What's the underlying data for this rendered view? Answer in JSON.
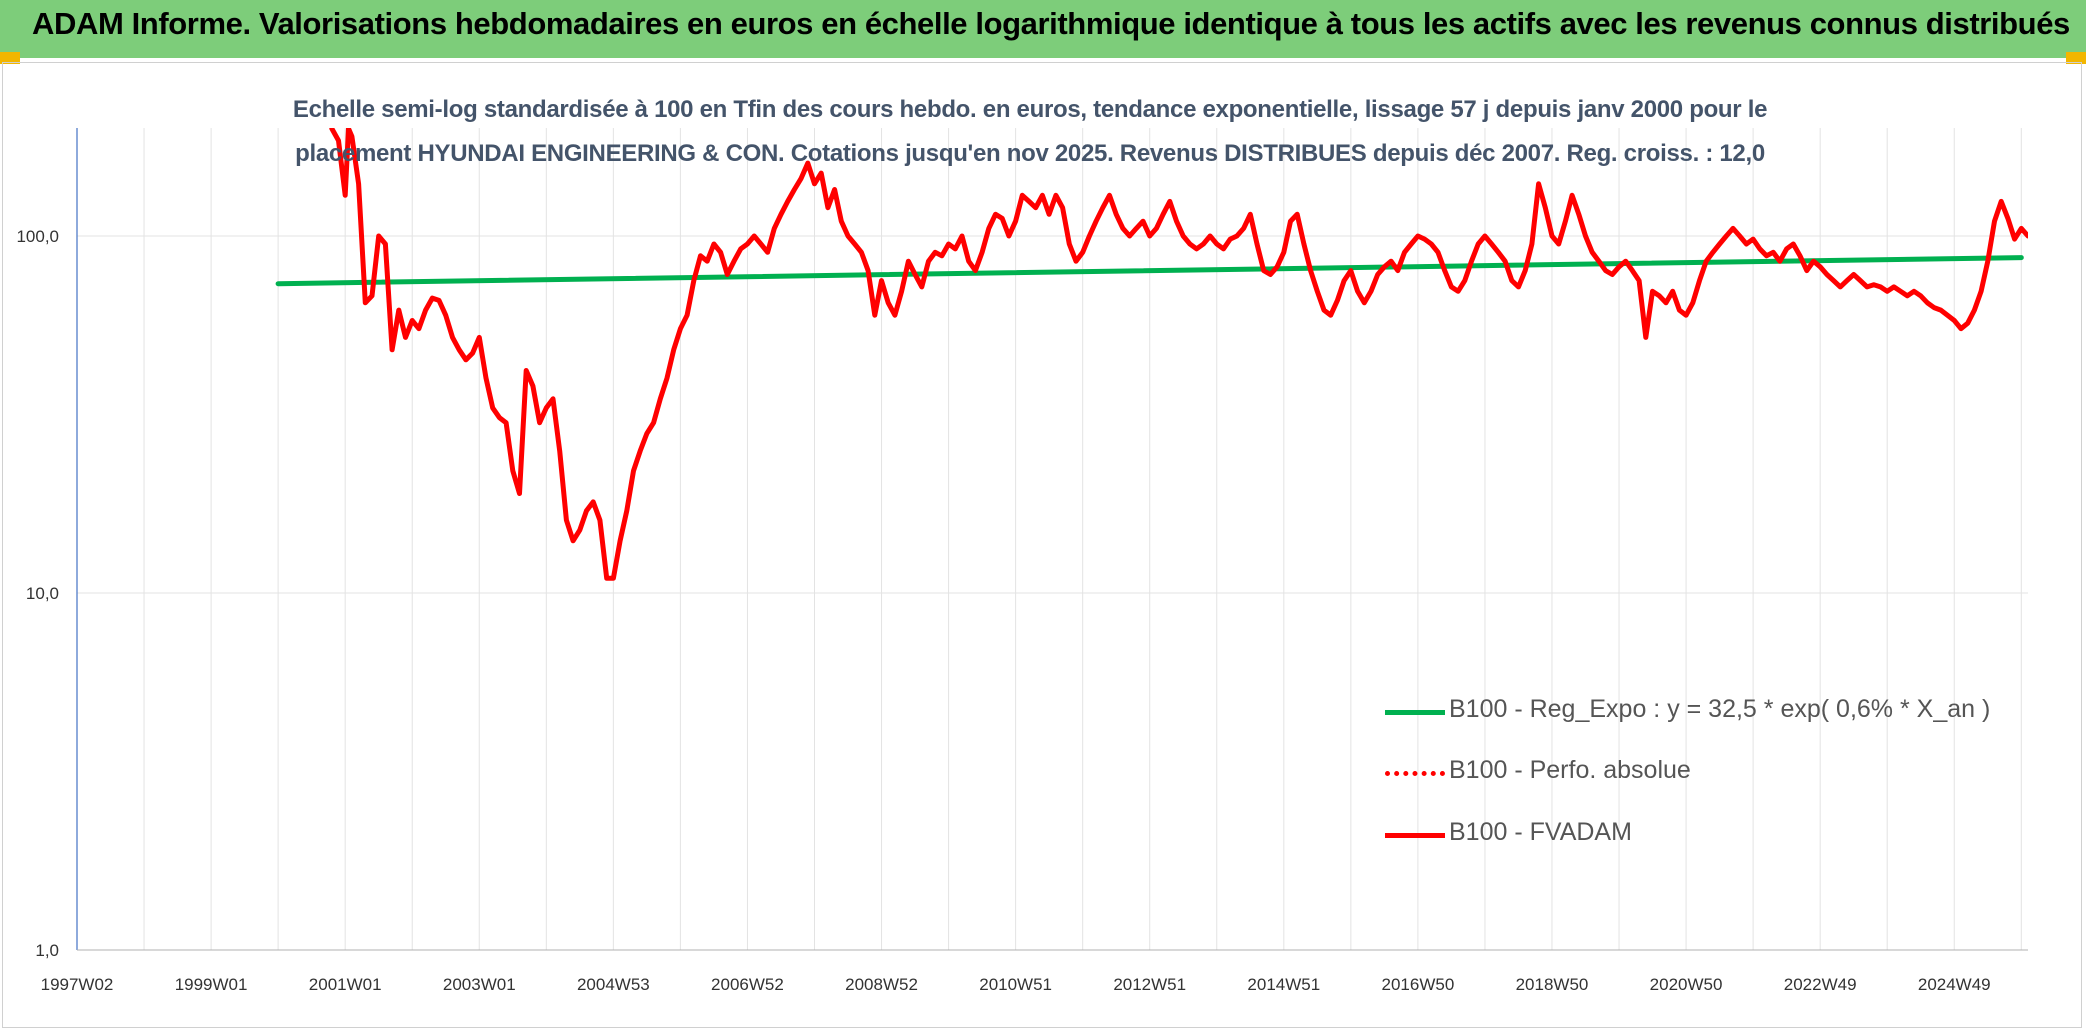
{
  "header": {
    "title": "ADAM Informe. Valorisations hebdomadaires en euros en échelle logarithmique identique à tous les actifs avec les revenus connus distribués"
  },
  "colors": {
    "header_bg": "#7dcd7a",
    "regression": "#00b050",
    "fvadam": "#ff0000",
    "title": "#44546a"
  },
  "chart_data": {
    "type": "line",
    "title": "Echelle semi-log standardisée à 100 en Tfin des cours hebdo. en euros, tendance exponentielle, lissage 57 j depuis janv 2000 pour le placement HYUNDAI ENGINEERING & CON. Cotations jusqu'en nov 2025. Revenus DISTRIBUES depuis déc 2007. Reg. croiss. : 12,0",
    "y_scale": "log",
    "ylim": [
      1,
      200
    ],
    "xlim": [
      1997.0,
      2026.1
    ],
    "y_ticks": [
      {
        "value": 1,
        "label": "1,0"
      },
      {
        "value": 10,
        "label": "10,0"
      },
      {
        "value": 100,
        "label": "100,0"
      }
    ],
    "x_ticks": [
      {
        "value": 1997.0,
        "label": "1997W02"
      },
      {
        "value": 1999.0,
        "label": "1999W01"
      },
      {
        "value": 2001.0,
        "label": "2001W01"
      },
      {
        "value": 2003.0,
        "label": "2003W01"
      },
      {
        "value": 2005.0,
        "label": "2004W53"
      },
      {
        "value": 2007.0,
        "label": "2006W52"
      },
      {
        "value": 2009.0,
        "label": "2008W52"
      },
      {
        "value": 2011.0,
        "label": "2010W51"
      },
      {
        "value": 2013.0,
        "label": "2012W51"
      },
      {
        "value": 2015.0,
        "label": "2014W51"
      },
      {
        "value": 2017.0,
        "label": "2016W50"
      },
      {
        "value": 2019.0,
        "label": "2018W50"
      },
      {
        "value": 2021.0,
        "label": "2020W50"
      },
      {
        "value": 2023.0,
        "label": "2022W49"
      },
      {
        "value": 2025.0,
        "label": "2024W49"
      }
    ],
    "grid": true,
    "legend_position": "bottom-right",
    "series": [
      {
        "name": "B100 - Reg_Expo : y = 32,5 * exp( 0,6% *  X_an )",
        "style": "solid",
        "color": "#00b050",
        "points": [
          [
            2000.0,
            73.5
          ],
          [
            2026.0,
            87.0
          ]
        ]
      },
      {
        "name": "B100 - Perfo. absolue",
        "style": "dotted",
        "color": "#ff0000",
        "points": []
      },
      {
        "name": "B100 - FVADAM",
        "style": "solid",
        "color": "#ff0000",
        "points": [
          [
            2000.8,
            200
          ],
          [
            2000.9,
            185
          ],
          [
            2001.0,
            130
          ],
          [
            2001.05,
            200
          ],
          [
            2001.1,
            190
          ],
          [
            2001.2,
            140
          ],
          [
            2001.3,
            65
          ],
          [
            2001.4,
            68
          ],
          [
            2001.5,
            100
          ],
          [
            2001.6,
            95
          ],
          [
            2001.7,
            48
          ],
          [
            2001.8,
            62
          ],
          [
            2001.9,
            52
          ],
          [
            2002.0,
            58
          ],
          [
            2002.1,
            55
          ],
          [
            2002.2,
            62
          ],
          [
            2002.3,
            67
          ],
          [
            2002.4,
            66
          ],
          [
            2002.5,
            60
          ],
          [
            2002.6,
            52
          ],
          [
            2002.7,
            48
          ],
          [
            2002.8,
            45
          ],
          [
            2002.9,
            47
          ],
          [
            2003.0,
            52
          ],
          [
            2003.1,
            40
          ],
          [
            2003.2,
            33
          ],
          [
            2003.3,
            31
          ],
          [
            2003.4,
            30
          ],
          [
            2003.5,
            22
          ],
          [
            2003.6,
            19
          ],
          [
            2003.7,
            42
          ],
          [
            2003.8,
            38
          ],
          [
            2003.9,
            30
          ],
          [
            2004.0,
            33
          ],
          [
            2004.1,
            35
          ],
          [
            2004.2,
            25
          ],
          [
            2004.3,
            16
          ],
          [
            2004.4,
            14
          ],
          [
            2004.5,
            15
          ],
          [
            2004.6,
            17
          ],
          [
            2004.7,
            18
          ],
          [
            2004.8,
            16
          ],
          [
            2004.9,
            11
          ],
          [
            2005.0,
            11
          ],
          [
            2005.1,
            14
          ],
          [
            2005.2,
            17
          ],
          [
            2005.3,
            22
          ],
          [
            2005.4,
            25
          ],
          [
            2005.5,
            28
          ],
          [
            2005.6,
            30
          ],
          [
            2005.7,
            35
          ],
          [
            2005.8,
            40
          ],
          [
            2005.9,
            48
          ],
          [
            2006.0,
            55
          ],
          [
            2006.1,
            60
          ],
          [
            2006.2,
            75
          ],
          [
            2006.3,
            88
          ],
          [
            2006.4,
            85
          ],
          [
            2006.5,
            95
          ],
          [
            2006.6,
            90
          ],
          [
            2006.7,
            78
          ],
          [
            2006.8,
            85
          ],
          [
            2006.9,
            92
          ],
          [
            2007.0,
            95
          ],
          [
            2007.1,
            100
          ],
          [
            2007.2,
            95
          ],
          [
            2007.3,
            90
          ],
          [
            2007.4,
            105
          ],
          [
            2007.5,
            115
          ],
          [
            2007.6,
            125
          ],
          [
            2007.7,
            135
          ],
          [
            2007.8,
            145
          ],
          [
            2007.9,
            160
          ],
          [
            2008.0,
            140
          ],
          [
            2008.1,
            150
          ],
          [
            2008.2,
            120
          ],
          [
            2008.3,
            135
          ],
          [
            2008.4,
            110
          ],
          [
            2008.5,
            100
          ],
          [
            2008.6,
            95
          ],
          [
            2008.7,
            90
          ],
          [
            2008.8,
            80
          ],
          [
            2008.9,
            60
          ],
          [
            2009.0,
            75
          ],
          [
            2009.1,
            65
          ],
          [
            2009.2,
            60
          ],
          [
            2009.3,
            70
          ],
          [
            2009.4,
            85
          ],
          [
            2009.5,
            78
          ],
          [
            2009.6,
            72
          ],
          [
            2009.7,
            85
          ],
          [
            2009.8,
            90
          ],
          [
            2009.9,
            88
          ],
          [
            2010.0,
            95
          ],
          [
            2010.1,
            92
          ],
          [
            2010.2,
            100
          ],
          [
            2010.3,
            85
          ],
          [
            2010.4,
            80
          ],
          [
            2010.5,
            90
          ],
          [
            2010.6,
            105
          ],
          [
            2010.7,
            115
          ],
          [
            2010.8,
            112
          ],
          [
            2010.9,
            100
          ],
          [
            2011.0,
            110
          ],
          [
            2011.1,
            130
          ],
          [
            2011.2,
            125
          ],
          [
            2011.3,
            120
          ],
          [
            2011.4,
            130
          ],
          [
            2011.5,
            115
          ],
          [
            2011.6,
            130
          ],
          [
            2011.7,
            120
          ],
          [
            2011.8,
            95
          ],
          [
            2011.9,
            85
          ],
          [
            2012.0,
            90
          ],
          [
            2012.1,
            100
          ],
          [
            2012.2,
            110
          ],
          [
            2012.3,
            120
          ],
          [
            2012.4,
            130
          ],
          [
            2012.5,
            115
          ],
          [
            2012.6,
            105
          ],
          [
            2012.7,
            100
          ],
          [
            2012.8,
            105
          ],
          [
            2012.9,
            110
          ],
          [
            2013.0,
            100
          ],
          [
            2013.1,
            105
          ],
          [
            2013.2,
            115
          ],
          [
            2013.3,
            125
          ],
          [
            2013.4,
            110
          ],
          [
            2013.5,
            100
          ],
          [
            2013.6,
            95
          ],
          [
            2013.7,
            92
          ],
          [
            2013.8,
            95
          ],
          [
            2013.9,
            100
          ],
          [
            2014.0,
            95
          ],
          [
            2014.1,
            92
          ],
          [
            2014.2,
            98
          ],
          [
            2014.3,
            100
          ],
          [
            2014.4,
            105
          ],
          [
            2014.5,
            115
          ],
          [
            2014.6,
            95
          ],
          [
            2014.7,
            80
          ],
          [
            2014.8,
            78
          ],
          [
            2014.9,
            82
          ],
          [
            2015.0,
            90
          ],
          [
            2015.1,
            110
          ],
          [
            2015.2,
            115
          ],
          [
            2015.3,
            95
          ],
          [
            2015.4,
            80
          ],
          [
            2015.5,
            70
          ],
          [
            2015.6,
            62
          ],
          [
            2015.7,
            60
          ],
          [
            2015.8,
            66
          ],
          [
            2015.9,
            75
          ],
          [
            2016.0,
            80
          ],
          [
            2016.1,
            70
          ],
          [
            2016.2,
            65
          ],
          [
            2016.3,
            70
          ],
          [
            2016.4,
            78
          ],
          [
            2016.5,
            82
          ],
          [
            2016.6,
            85
          ],
          [
            2016.7,
            80
          ],
          [
            2016.8,
            90
          ],
          [
            2016.9,
            95
          ],
          [
            2017.0,
            100
          ],
          [
            2017.1,
            98
          ],
          [
            2017.2,
            95
          ],
          [
            2017.3,
            90
          ],
          [
            2017.4,
            80
          ],
          [
            2017.5,
            72
          ],
          [
            2017.6,
            70
          ],
          [
            2017.7,
            75
          ],
          [
            2017.8,
            85
          ],
          [
            2017.9,
            95
          ],
          [
            2018.0,
            100
          ],
          [
            2018.1,
            95
          ],
          [
            2018.2,
            90
          ],
          [
            2018.3,
            85
          ],
          [
            2018.4,
            75
          ],
          [
            2018.5,
            72
          ],
          [
            2018.6,
            80
          ],
          [
            2018.7,
            95
          ],
          [
            2018.8,
            140
          ],
          [
            2018.9,
            120
          ],
          [
            2019.0,
            100
          ],
          [
            2019.1,
            95
          ],
          [
            2019.2,
            110
          ],
          [
            2019.3,
            130
          ],
          [
            2019.4,
            115
          ],
          [
            2019.5,
            100
          ],
          [
            2019.6,
            90
          ],
          [
            2019.7,
            85
          ],
          [
            2019.8,
            80
          ],
          [
            2019.9,
            78
          ],
          [
            2020.0,
            82
          ],
          [
            2020.1,
            85
          ],
          [
            2020.2,
            80
          ],
          [
            2020.3,
            75
          ],
          [
            2020.4,
            52
          ],
          [
            2020.5,
            70
          ],
          [
            2020.6,
            68
          ],
          [
            2020.7,
            65
          ],
          [
            2020.8,
            70
          ],
          [
            2020.9,
            62
          ],
          [
            2021.0,
            60
          ],
          [
            2021.1,
            65
          ],
          [
            2021.2,
            75
          ],
          [
            2021.3,
            85
          ],
          [
            2021.4,
            90
          ],
          [
            2021.5,
            95
          ],
          [
            2021.6,
            100
          ],
          [
            2021.7,
            105
          ],
          [
            2021.8,
            100
          ],
          [
            2021.9,
            95
          ],
          [
            2022.0,
            98
          ],
          [
            2022.1,
            92
          ],
          [
            2022.2,
            88
          ],
          [
            2022.3,
            90
          ],
          [
            2022.4,
            85
          ],
          [
            2022.5,
            92
          ],
          [
            2022.6,
            95
          ],
          [
            2022.7,
            88
          ],
          [
            2022.8,
            80
          ],
          [
            2022.9,
            85
          ],
          [
            2023.0,
            82
          ],
          [
            2023.1,
            78
          ],
          [
            2023.2,
            75
          ],
          [
            2023.3,
            72
          ],
          [
            2023.4,
            75
          ],
          [
            2023.5,
            78
          ],
          [
            2023.6,
            75
          ],
          [
            2023.7,
            72
          ],
          [
            2023.8,
            73
          ],
          [
            2023.9,
            72
          ],
          [
            2024.0,
            70
          ],
          [
            2024.1,
            72
          ],
          [
            2024.2,
            70
          ],
          [
            2024.3,
            68
          ],
          [
            2024.4,
            70
          ],
          [
            2024.5,
            68
          ],
          [
            2024.6,
            65
          ],
          [
            2024.7,
            63
          ],
          [
            2024.8,
            62
          ],
          [
            2024.9,
            60
          ],
          [
            2025.0,
            58
          ],
          [
            2025.1,
            55
          ],
          [
            2025.2,
            57
          ],
          [
            2025.3,
            62
          ],
          [
            2025.4,
            70
          ],
          [
            2025.5,
            85
          ],
          [
            2025.6,
            110
          ],
          [
            2025.7,
            125
          ],
          [
            2025.8,
            112
          ],
          [
            2025.9,
            98
          ],
          [
            2026.0,
            105
          ],
          [
            2026.1,
            100
          ]
        ]
      }
    ]
  }
}
